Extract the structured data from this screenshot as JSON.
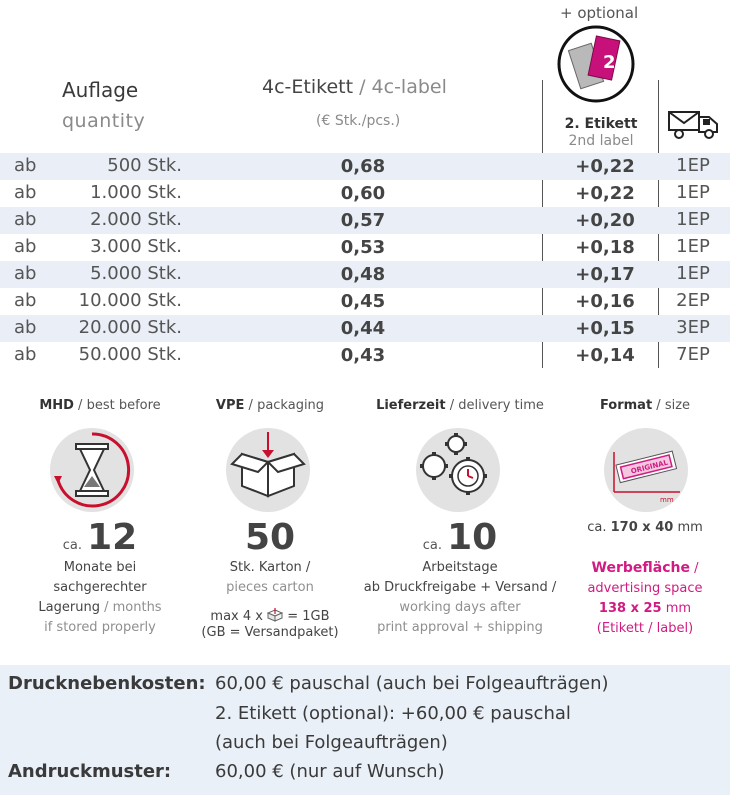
{
  "header": {
    "optional_note": "+ optional",
    "quantity_de": "Auflage",
    "quantity_en": "quantity",
    "label_de": "4c-Etikett",
    "label_sep": " / ",
    "label_en": "4c-label",
    "unit": "(€ Stk./pcs.)",
    "second_de": "2. Etikett",
    "second_en": "2nd label"
  },
  "rows": [
    {
      "prefix": "ab",
      "qty": "500 Stk.",
      "price": "0,68",
      "extra": "+0,22",
      "ep": "1EP"
    },
    {
      "prefix": "ab",
      "qty": "1.000 Stk.",
      "price": "0,60",
      "extra": "+0,22",
      "ep": "1EP"
    },
    {
      "prefix": "ab",
      "qty": "2.000 Stk.",
      "price": "0,57",
      "extra": "+0,20",
      "ep": "1EP"
    },
    {
      "prefix": "ab",
      "qty": "3.000 Stk.",
      "price": "0,53",
      "extra": "+0,18",
      "ep": "1EP"
    },
    {
      "prefix": "ab",
      "qty": "5.000 Stk.",
      "price": "0,48",
      "extra": "+0,17",
      "ep": "1EP"
    },
    {
      "prefix": "ab",
      "qty": "10.000 Stk.",
      "price": "0,45",
      "extra": "+0,16",
      "ep": "2EP"
    },
    {
      "prefix": "ab",
      "qty": "20.000 Stk.",
      "price": "0,44",
      "extra": "+0,15",
      "ep": "3EP"
    },
    {
      "prefix": "ab",
      "qty": "50.000 Stk.",
      "price": "0,43",
      "extra": "+0,14",
      "ep": "7EP"
    }
  ],
  "mhd": {
    "head_de": "MHD",
    "head_en": "best before",
    "icon": "hourglass-icon",
    "ca": "ca.",
    "number": "12",
    "line1": "Monate bei",
    "line2": "sachgerechter",
    "line3_de": "Lagerung",
    "line3_en": "months",
    "line4": "if stored properly"
  },
  "vpe": {
    "head_de": "VPE",
    "head_en": "packaging",
    "icon": "box-icon",
    "number": "50",
    "line1": "Stk. Karton /",
    "line2": "pieces carton",
    "max_pre": "max 4 x",
    "max_post": "= 1GB",
    "gb_note": "(GB = Versandpaket)"
  },
  "delivery": {
    "head_de": "Lieferzeit",
    "head_en": "delivery time",
    "icon": "gears-clock-icon",
    "ca": "ca.",
    "number": "10",
    "line1": "Arbeitstage",
    "line2": "ab Druckfreigabe + Versand /",
    "line3": "working days after",
    "line4": "print approval + shipping"
  },
  "format": {
    "head_de": "Format",
    "head_en": "size",
    "icon": "label-size-icon",
    "icon_label": "ORIGINAL",
    "icon_unit": "mm",
    "size_ca": "ca.",
    "size": "170 x 40",
    "size_unit": "mm",
    "ad_de": "Werbefläche",
    "ad_en": "advertising space",
    "ad_size": "138 x 25",
    "ad_unit": "mm",
    "ad_note": "(Etikett / label)"
  },
  "footer": {
    "k1": "Drucknebenkosten:",
    "v1": "60,00 € pauschal (auch bei Folgeaufträgen)",
    "v2": "2. Etikett (optional): +60,00 € pauschal",
    "v3": "(auch bei Folgeaufträgen)",
    "k2": "Andruckmuster:",
    "v4": "60,00 € (nur auf Wunsch)"
  },
  "colors": {
    "accent": "#d11a82",
    "row_stripe": "#e9eef7",
    "footer_bg": "#eaf0f8",
    "text": "#3c3c3c"
  }
}
